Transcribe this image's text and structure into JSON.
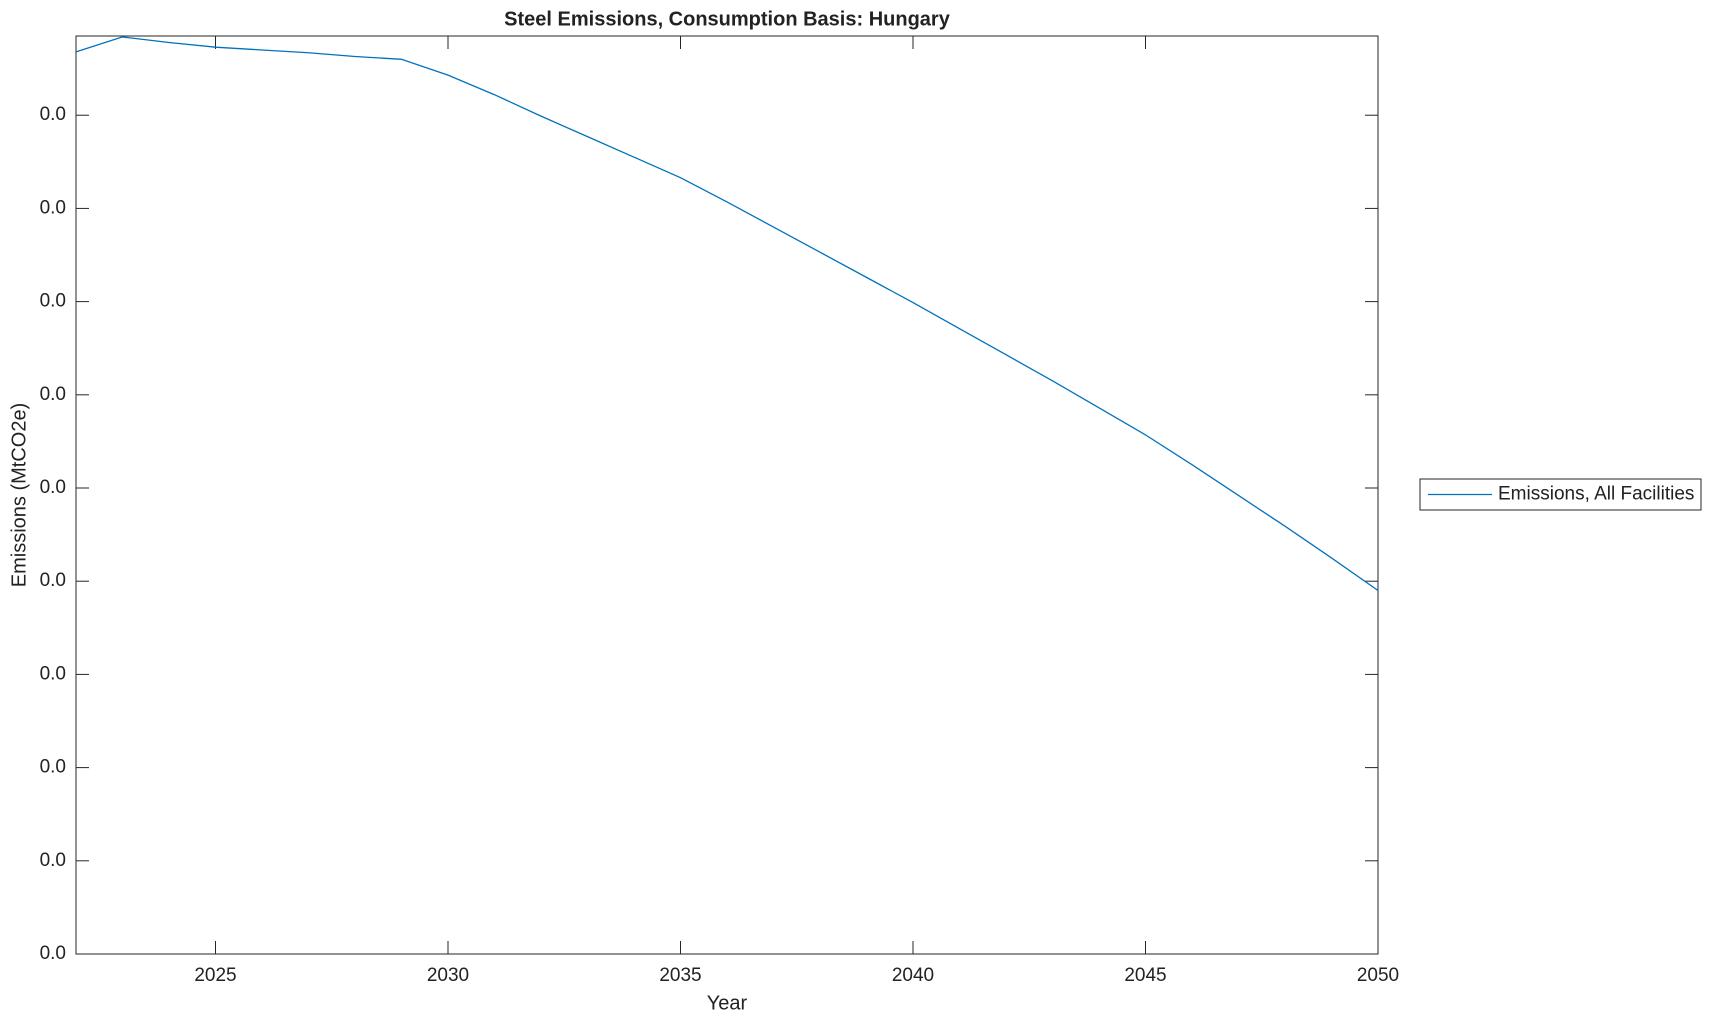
{
  "chart_data": {
    "type": "line",
    "title": "Steel Emissions, Consumption Basis: Hungary",
    "x_label": "Year",
    "y_label": "Emissions (MtCO2e)",
    "x": [
      2022,
      2023,
      2024,
      2025,
      2026,
      2027,
      2028,
      2029,
      2030,
      2031,
      2032,
      2033,
      2034,
      2035,
      2036,
      2037,
      2038,
      2039,
      2040,
      2041,
      2042,
      2043,
      2044,
      2045,
      2046,
      2047,
      2048,
      2049,
      2050
    ],
    "series": [
      {
        "name": "Emissions, All Facilities",
        "color": "#0072bd",
        "values": [
          0.00968,
          0.00984,
          0.00978,
          0.00973,
          0.0097,
          0.00967,
          0.00963,
          0.0096,
          0.00943,
          0.00922,
          0.00899,
          0.00877,
          0.00855,
          0.00833,
          0.00807,
          0.0078,
          0.00753,
          0.00726,
          0.00699,
          0.00671,
          0.00643,
          0.00615,
          0.00586,
          0.00557,
          0.00525,
          0.00492,
          0.00459,
          0.00425,
          0.0039
        ]
      }
    ],
    "xlim": [
      2022,
      2050
    ],
    "xticks": [
      2025,
      2030,
      2035,
      2040,
      2045,
      2050
    ],
    "ylim": [
      0,
      0.00985
    ],
    "yticks": [
      {
        "value": 0,
        "label": "0.0"
      },
      {
        "value": 0.001,
        "label": "0.0"
      },
      {
        "value": 0.002,
        "label": "0.0"
      },
      {
        "value": 0.003,
        "label": "0.0"
      },
      {
        "value": 0.004,
        "label": "0.0"
      },
      {
        "value": 0.005,
        "label": "0.0"
      },
      {
        "value": 0.006,
        "label": "0.0"
      },
      {
        "value": 0.007,
        "label": "0.0"
      },
      {
        "value": 0.008,
        "label": "0.0"
      },
      {
        "value": 0.009,
        "label": "0.0"
      }
    ],
    "grid": false,
    "legend": "right"
  }
}
